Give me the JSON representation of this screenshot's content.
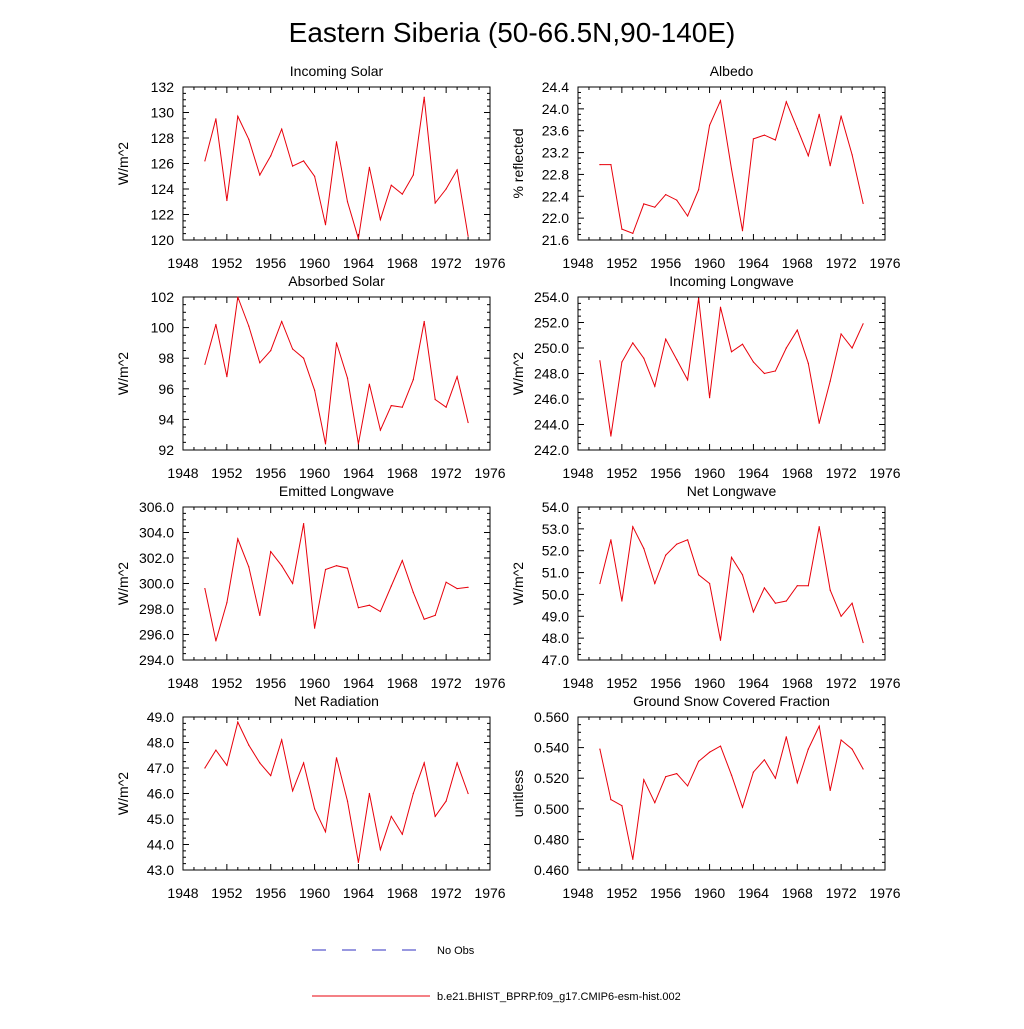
{
  "figure": {
    "title": "Eastern Siberia (50-66.5N,90-140E)",
    "line_color": "#e8000b",
    "obs_color": "#3030c0"
  },
  "legend": {
    "obs_label": "No Obs",
    "model_label": "b.e21.BHIST_BPRP.f09_g17.CMIP6-esm-hist.002"
  },
  "chart_data": [
    {
      "type": "line",
      "title": "Incoming Solar",
      "xlabel": "",
      "ylabel": "W/m^2",
      "xlim": [
        1948,
        1976
      ],
      "ylim": [
        120,
        132
      ],
      "xticks": [
        "1948",
        "1952",
        "1956",
        "1960",
        "1964",
        "1968",
        "1972",
        "1976"
      ],
      "yticks": [
        "120",
        "122",
        "124",
        "126",
        "128",
        "130",
        "132"
      ],
      "series": [
        {
          "name": "b.e21.BHIST_BPRP.f09_g17.CMIP6-esm-hist.002",
          "x": [
            1950,
            1951,
            1952,
            1953,
            1954,
            1955,
            1956,
            1957,
            1958,
            1959,
            1960,
            1961,
            1962,
            1963,
            1964,
            1965,
            1966,
            1967,
            1968,
            1969,
            1970,
            1971,
            1972,
            1973,
            1974
          ],
          "values": [
            126.2,
            129.5,
            123.1,
            129.7,
            127.9,
            125.1,
            126.6,
            128.7,
            125.8,
            126.2,
            125.0,
            121.2,
            127.7,
            123.0,
            120.1,
            125.7,
            121.6,
            124.3,
            123.6,
            125.1,
            131.2,
            122.9,
            124.0,
            125.5,
            120.3
          ]
        }
      ]
    },
    {
      "type": "line",
      "title": "Albedo",
      "xlabel": "",
      "ylabel": "% reflected",
      "xlim": [
        1948,
        1976
      ],
      "ylim": [
        21.6,
        24.4
      ],
      "xticks": [
        "1948",
        "1952",
        "1956",
        "1960",
        "1964",
        "1968",
        "1972",
        "1976"
      ],
      "yticks": [
        "21.6",
        "22.0",
        "22.4",
        "22.8",
        "23.2",
        "23.6",
        "24.0",
        "24.4"
      ],
      "series": [
        {
          "name": "b.e21.BHIST_BPRP.f09_g17.CMIP6-esm-hist.002",
          "x": [
            1950,
            1951,
            1952,
            1953,
            1954,
            1955,
            1956,
            1957,
            1958,
            1959,
            1960,
            1961,
            1962,
            1963,
            1964,
            1965,
            1966,
            1967,
            1968,
            1969,
            1970,
            1971,
            1972,
            1973,
            1974
          ],
          "values": [
            22.98,
            22.98,
            21.8,
            21.72,
            22.26,
            22.2,
            22.43,
            22.33,
            22.04,
            22.52,
            23.7,
            24.15,
            22.9,
            21.77,
            23.45,
            23.52,
            23.43,
            24.13,
            23.64,
            23.14,
            23.9,
            22.96,
            23.87,
            23.16,
            22.27
          ]
        }
      ]
    },
    {
      "type": "line",
      "title": "Absorbed Solar",
      "xlabel": "",
      "ylabel": "W/m^2",
      "xlim": [
        1948,
        1976
      ],
      "ylim": [
        92,
        102
      ],
      "xticks": [
        "1948",
        "1952",
        "1956",
        "1960",
        "1964",
        "1968",
        "1972",
        "1976"
      ],
      "yticks": [
        "92",
        "94",
        "96",
        "98",
        "100",
        "102"
      ],
      "series": [
        {
          "name": "b.e21.BHIST_BPRP.f09_g17.CMIP6-esm-hist.002",
          "x": [
            1950,
            1951,
            1952,
            1953,
            1954,
            1955,
            1956,
            1957,
            1958,
            1959,
            1960,
            1961,
            1962,
            1963,
            1964,
            1965,
            1966,
            1967,
            1968,
            1969,
            1970,
            1971,
            1972,
            1973,
            1974
          ],
          "values": [
            97.6,
            100.2,
            96.8,
            102.0,
            100.1,
            97.7,
            98.5,
            100.4,
            98.6,
            98.0,
            95.9,
            92.4,
            99.0,
            96.7,
            92.4,
            96.3,
            93.3,
            94.9,
            94.8,
            96.6,
            100.4,
            95.3,
            94.8,
            96.8,
            93.8
          ]
        }
      ]
    },
    {
      "type": "line",
      "title": "Incoming Longwave",
      "xlabel": "",
      "ylabel": "W/m^2",
      "xlim": [
        1948,
        1976
      ],
      "ylim": [
        242,
        254
      ],
      "xticks": [
        "1948",
        "1952",
        "1956",
        "1960",
        "1964",
        "1968",
        "1972",
        "1976"
      ],
      "yticks": [
        "242.0",
        "244.0",
        "246.0",
        "248.0",
        "250.0",
        "252.0",
        "254.0"
      ],
      "series": [
        {
          "name": "b.e21.BHIST_BPRP.f09_g17.CMIP6-esm-hist.002",
          "x": [
            1950,
            1951,
            1952,
            1953,
            1954,
            1955,
            1956,
            1957,
            1958,
            1959,
            1960,
            1961,
            1962,
            1963,
            1964,
            1965,
            1966,
            1967,
            1968,
            1969,
            1970,
            1971,
            1972,
            1973,
            1974
          ],
          "values": [
            249.0,
            243.1,
            248.9,
            250.4,
            249.2,
            247.0,
            250.7,
            249.1,
            247.5,
            253.9,
            246.1,
            253.2,
            249.7,
            250.3,
            248.9,
            248.0,
            248.2,
            250.0,
            251.4,
            248.8,
            244.1,
            247.4,
            251.1,
            250.0,
            251.9
          ]
        }
      ]
    },
    {
      "type": "line",
      "title": "Emitted Longwave",
      "xlabel": "",
      "ylabel": "W/m^2",
      "xlim": [
        1948,
        1976
      ],
      "ylim": [
        294,
        306
      ],
      "xticks": [
        "1948",
        "1952",
        "1956",
        "1960",
        "1964",
        "1968",
        "1972",
        "1976"
      ],
      "yticks": [
        "294.0",
        "296.0",
        "298.0",
        "300.0",
        "302.0",
        "304.0",
        "306.0"
      ],
      "series": [
        {
          "name": "b.e21.BHIST_BPRP.f09_g17.CMIP6-esm-hist.002",
          "x": [
            1950,
            1951,
            1952,
            1953,
            1954,
            1955,
            1956,
            1957,
            1958,
            1959,
            1960,
            1961,
            1962,
            1963,
            1964,
            1965,
            1966,
            1967,
            1968,
            1969,
            1970,
            1971,
            1972,
            1973,
            1974
          ],
          "values": [
            299.6,
            295.5,
            298.5,
            303.5,
            301.3,
            297.5,
            302.5,
            301.4,
            300.0,
            304.7,
            296.5,
            301.1,
            301.4,
            301.2,
            298.1,
            298.3,
            297.8,
            299.8,
            301.8,
            299.3,
            297.2,
            297.5,
            300.1,
            299.6,
            299.7
          ]
        }
      ]
    },
    {
      "type": "line",
      "title": "Net Longwave",
      "xlabel": "",
      "ylabel": "W/m^2",
      "xlim": [
        1948,
        1976
      ],
      "ylim": [
        47,
        54
      ],
      "xticks": [
        "1948",
        "1952",
        "1956",
        "1960",
        "1964",
        "1968",
        "1972",
        "1976"
      ],
      "yticks": [
        "47.0",
        "48.0",
        "49.0",
        "50.0",
        "51.0",
        "52.0",
        "53.0",
        "54.0"
      ],
      "series": [
        {
          "name": "b.e21.BHIST_BPRP.f09_g17.CMIP6-esm-hist.002",
          "x": [
            1950,
            1951,
            1952,
            1953,
            1954,
            1955,
            1956,
            1957,
            1958,
            1959,
            1960,
            1961,
            1962,
            1963,
            1964,
            1965,
            1966,
            1967,
            1968,
            1969,
            1970,
            1971,
            1972,
            1973,
            1974
          ],
          "values": [
            50.5,
            52.5,
            49.7,
            53.1,
            52.1,
            50.5,
            51.8,
            52.3,
            52.5,
            50.9,
            50.5,
            47.9,
            51.7,
            50.9,
            49.2,
            50.3,
            49.6,
            49.7,
            50.4,
            50.4,
            53.1,
            50.2,
            49.0,
            49.6,
            47.8
          ]
        }
      ]
    },
    {
      "type": "line",
      "title": "Net Radiation",
      "xlabel": "",
      "ylabel": "W/m^2",
      "xlim": [
        1948,
        1976
      ],
      "ylim": [
        43,
        49
      ],
      "xticks": [
        "1948",
        "1952",
        "1956",
        "1960",
        "1964",
        "1968",
        "1972",
        "1976"
      ],
      "yticks": [
        "43.0",
        "44.0",
        "45.0",
        "46.0",
        "47.0",
        "48.0",
        "49.0"
      ],
      "series": [
        {
          "name": "b.e21.BHIST_BPRP.f09_g17.CMIP6-esm-hist.002",
          "x": [
            1950,
            1951,
            1952,
            1953,
            1954,
            1955,
            1956,
            1957,
            1958,
            1959,
            1960,
            1961,
            1962,
            1963,
            1964,
            1965,
            1966,
            1967,
            1968,
            1969,
            1970,
            1971,
            1972,
            1973,
            1974
          ],
          "values": [
            47.0,
            47.7,
            47.1,
            48.8,
            47.9,
            47.2,
            46.7,
            48.1,
            46.1,
            47.2,
            45.4,
            44.5,
            47.4,
            45.7,
            43.3,
            46.0,
            43.8,
            45.1,
            44.4,
            46.0,
            47.2,
            45.1,
            45.7,
            47.2,
            46.0
          ]
        }
      ]
    },
    {
      "type": "line",
      "title": "Ground Snow Covered Fraction",
      "xlabel": "",
      "ylabel": "unitless",
      "xlim": [
        1948,
        1976
      ],
      "ylim": [
        0.46,
        0.56
      ],
      "xticks": [
        "1948",
        "1952",
        "1956",
        "1960",
        "1964",
        "1968",
        "1972",
        "1976"
      ],
      "yticks": [
        "0.460",
        "0.480",
        "0.500",
        "0.520",
        "0.540",
        "0.560"
      ],
      "series": [
        {
          "name": "b.e21.BHIST_BPRP.f09_g17.CMIP6-esm-hist.002",
          "x": [
            1950,
            1951,
            1952,
            1953,
            1954,
            1955,
            1956,
            1957,
            1958,
            1959,
            1960,
            1961,
            1962,
            1963,
            1964,
            1965,
            1966,
            1967,
            1968,
            1969,
            1970,
            1971,
            1972,
            1973,
            1974
          ],
          "values": [
            0.539,
            0.506,
            0.502,
            0.467,
            0.519,
            0.504,
            0.521,
            0.523,
            0.515,
            0.531,
            0.537,
            0.541,
            0.522,
            0.501,
            0.524,
            0.532,
            0.52,
            0.547,
            0.517,
            0.539,
            0.554,
            0.512,
            0.545,
            0.539,
            0.526
          ]
        }
      ]
    }
  ]
}
